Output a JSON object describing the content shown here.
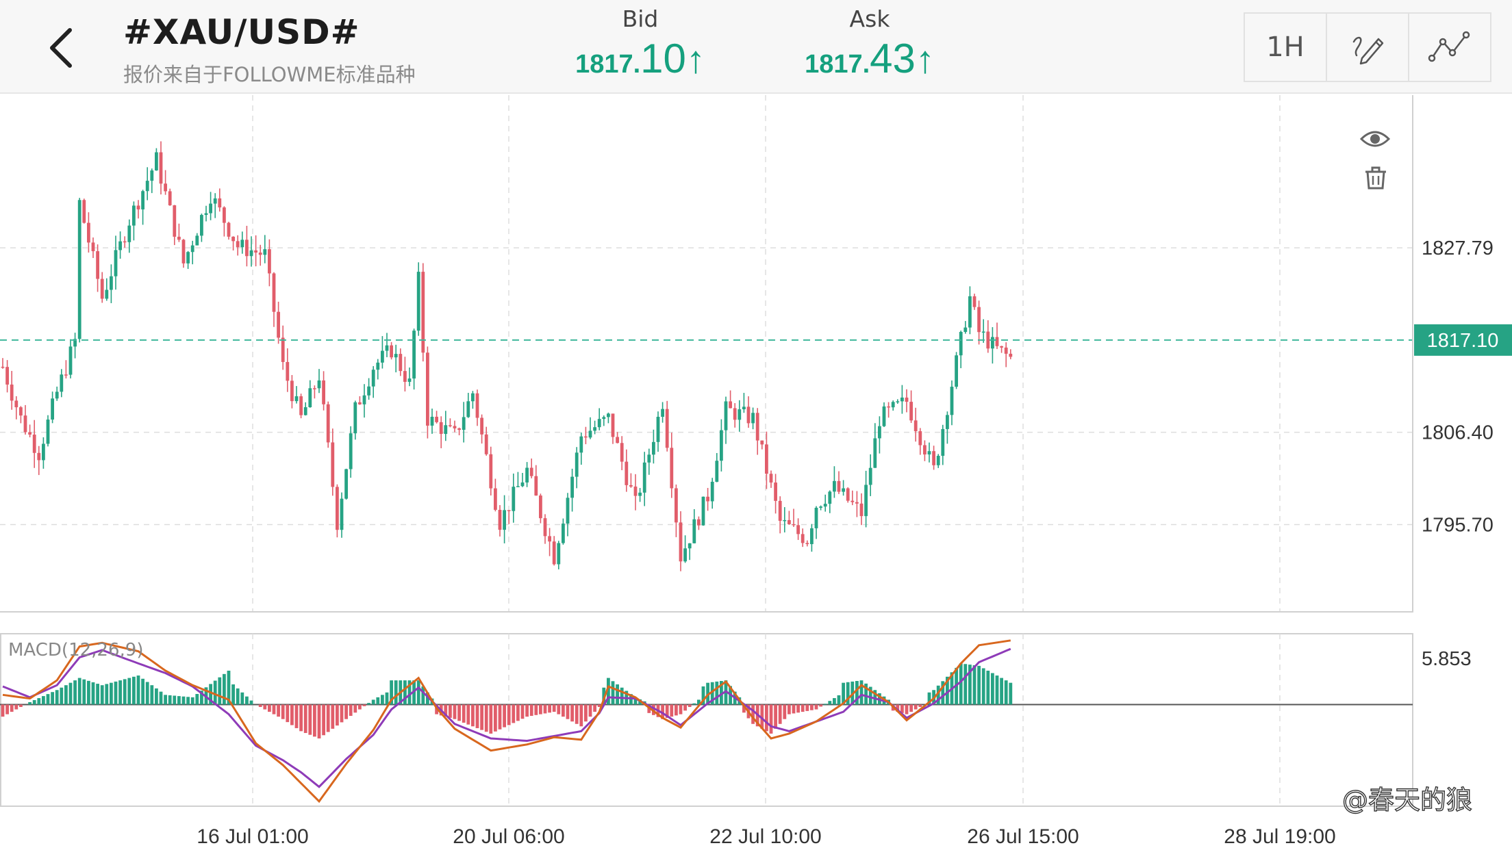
{
  "header": {
    "title": "#XAU/USD#",
    "subtitle": "报价来自于FOLLOWME标准品种",
    "bid": {
      "label": "Bid",
      "main": "1817.",
      "big": "10",
      "arrow": "↑"
    },
    "ask": {
      "label": "Ask",
      "main": "1817.",
      "big": "43",
      "arrow": "↑"
    },
    "toolbar": {
      "timeframe": "1H",
      "draw_icon": "pen-tool-icon",
      "indicator_icon": "indicator-line-icon"
    }
  },
  "colors": {
    "up": "#26a384",
    "down": "#e15d6a",
    "ma_fast": "#d8671e",
    "ma_slow": "#8e3bb8",
    "grid": "#dddddd",
    "price_line": "#3fb79b"
  },
  "chart_data": [
    {
      "type": "candlestick",
      "ylim": [
        1785.5,
        1845.5
      ],
      "y_ticks": [
        "1827.79",
        "1817.10",
        "1806.40",
        "1795.70"
      ],
      "current_price": "1817.10",
      "x_ticks": [
        "16 Jul 01:00",
        "20 Jul 06:00",
        "22 Jul 10:00",
        "26 Jul 15:00",
        "28 Jul 19:00"
      ],
      "controls": {
        "visibility_icon": "eye-icon",
        "delete_icon": "trash-icon"
      },
      "close_path": [
        [
          0,
          1814
        ],
        [
          4,
          1808
        ],
        [
          8,
          1804
        ],
        [
          12,
          1811
        ],
        [
          16,
          1817
        ],
        [
          17,
          1833
        ],
        [
          22,
          1822
        ],
        [
          28,
          1831
        ],
        [
          34,
          1838
        ],
        [
          40,
          1826
        ],
        [
          46,
          1834
        ],
        [
          52,
          1828
        ],
        [
          58,
          1827
        ],
        [
          62,
          1814
        ],
        [
          66,
          1808
        ],
        [
          70,
          1813
        ],
        [
          74,
          1796
        ],
        [
          78,
          1809
        ],
        [
          82,
          1814
        ],
        [
          86,
          1816
        ],
        [
          90,
          1812
        ],
        [
          92,
          1824
        ],
        [
          94,
          1808
        ],
        [
          100,
          1806
        ],
        [
          104,
          1811
        ],
        [
          110,
          1796
        ],
        [
          116,
          1802
        ],
        [
          122,
          1792
        ],
        [
          128,
          1806
        ],
        [
          134,
          1808
        ],
        [
          140,
          1798
        ],
        [
          146,
          1810
        ],
        [
          150,
          1792
        ],
        [
          156,
          1799
        ],
        [
          160,
          1809
        ],
        [
          166,
          1808
        ],
        [
          172,
          1796
        ],
        [
          178,
          1794
        ],
        [
          180,
          1798
        ],
        [
          184,
          1800
        ],
        [
          190,
          1797
        ],
        [
          194,
          1808
        ],
        [
          200,
          1810
        ],
        [
          206,
          1802
        ],
        [
          210,
          1812
        ],
        [
          214,
          1822
        ],
        [
          216,
          1818
        ],
        [
          220,
          1816
        ],
        [
          223,
          1815
        ]
      ]
    },
    {
      "type": "macd",
      "title": "MACD(12,26,9)",
      "y_top_label": "5.853",
      "ylim": [
        -8.4,
        5.853
      ],
      "macd_path": [
        [
          0,
          0.8
        ],
        [
          6,
          0.5
        ],
        [
          12,
          2.0
        ],
        [
          17,
          4.8
        ],
        [
          22,
          5.1
        ],
        [
          30,
          4.4
        ],
        [
          36,
          2.8
        ],
        [
          42,
          1.6
        ],
        [
          50,
          0.4
        ],
        [
          56,
          -3.2
        ],
        [
          62,
          -5.0
        ],
        [
          66,
          -6.5
        ],
        [
          70,
          -8.0
        ],
        [
          76,
          -4.9
        ],
        [
          82,
          -2.1
        ],
        [
          86,
          0.4
        ],
        [
          92,
          2.2
        ],
        [
          96,
          -0.3
        ],
        [
          100,
          -2.0
        ],
        [
          108,
          -3.8
        ],
        [
          116,
          -3.3
        ],
        [
          122,
          -2.7
        ],
        [
          128,
          -2.9
        ],
        [
          132,
          -0.6
        ],
        [
          134,
          1.5
        ],
        [
          140,
          0.6
        ],
        [
          146,
          -1.1
        ],
        [
          150,
          -1.9
        ],
        [
          156,
          0.8
        ],
        [
          160,
          1.9
        ],
        [
          166,
          -1.1
        ],
        [
          170,
          -2.8
        ],
        [
          174,
          -2.4
        ],
        [
          180,
          -1.4
        ],
        [
          186,
          0.1
        ],
        [
          190,
          1.6
        ],
        [
          196,
          0.2
        ],
        [
          200,
          -1.3
        ],
        [
          206,
          0.5
        ],
        [
          212,
          3.4
        ],
        [
          216,
          4.9
        ],
        [
          223,
          5.3
        ]
      ],
      "signal_path": [
        [
          0,
          1.5
        ],
        [
          6,
          0.6
        ],
        [
          12,
          1.6
        ],
        [
          17,
          3.9
        ],
        [
          22,
          4.5
        ],
        [
          30,
          3.4
        ],
        [
          36,
          2.6
        ],
        [
          42,
          1.5
        ],
        [
          50,
          -0.8
        ],
        [
          56,
          -3.4
        ],
        [
          62,
          -4.6
        ],
        [
          66,
          -5.6
        ],
        [
          70,
          -6.8
        ],
        [
          76,
          -4.5
        ],
        [
          82,
          -2.5
        ],
        [
          86,
          -0.4
        ],
        [
          92,
          1.4
        ],
        [
          96,
          -0.1
        ],
        [
          100,
          -1.6
        ],
        [
          108,
          -2.8
        ],
        [
          116,
          -3.0
        ],
        [
          122,
          -2.6
        ],
        [
          128,
          -2.2
        ],
        [
          132,
          -0.7
        ],
        [
          134,
          0.6
        ],
        [
          140,
          0.5
        ],
        [
          146,
          -0.7
        ],
        [
          150,
          -1.7
        ],
        [
          156,
          0.1
        ],
        [
          160,
          1.1
        ],
        [
          166,
          -0.5
        ],
        [
          170,
          -1.8
        ],
        [
          174,
          -2.2
        ],
        [
          180,
          -1.4
        ],
        [
          186,
          -0.6
        ],
        [
          190,
          0.8
        ],
        [
          196,
          0.2
        ],
        [
          200,
          -1.1
        ],
        [
          206,
          0.1
        ],
        [
          212,
          1.9
        ],
        [
          216,
          3.5
        ],
        [
          223,
          4.6
        ]
      ]
    }
  ],
  "watermark": "@春天的狼"
}
